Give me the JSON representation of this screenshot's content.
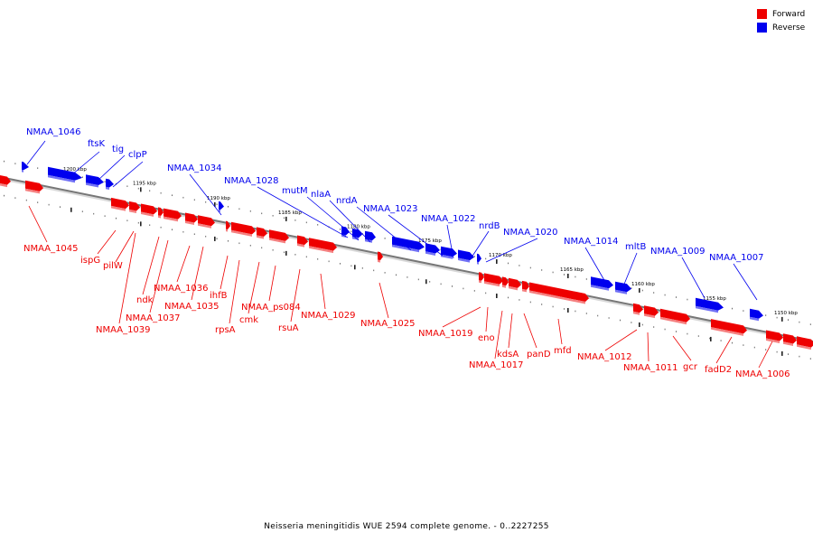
{
  "legend": {
    "forward": {
      "label": "Forward",
      "color": "#ee0000"
    },
    "reverse": {
      "label": "Reverse",
      "color": "#0000ee"
    }
  },
  "caption": "Neisseria meningitidis WUE 2594 complete genome. - 0..2227255",
  "axis": {
    "ticks": [
      "1200 kbp",
      "1195 kbp",
      "1190 kbp",
      "1185 kbp",
      "1180 kbp",
      "1175 kbp",
      "1170 kbp",
      "1165 kbp",
      "1160 kbp",
      "1155 kbp",
      "1150 kbp"
    ]
  },
  "genes": {
    "reverse": [
      "NMAA_1046",
      "ftsK",
      "tig",
      "clpP",
      "NMAA_1034",
      "NMAA_1028",
      "mutM",
      "nlaA",
      "nrdA",
      "NMAA_1023",
      "NMAA_1022",
      "nrdB",
      "NMAA_1020",
      "NMAA_1014",
      "mltB",
      "NMAA_1009",
      "NMAA_1007"
    ],
    "forward": [
      "NMAA_1045",
      "ispG",
      "pilW",
      "ndk",
      "NMAA_1039",
      "NMAA_1037",
      "NMAA_1036",
      "NMAA_1035",
      "ihfB",
      "rpsA",
      "cmk",
      "NMAA_ps084",
      "rsuA",
      "NMAA_1029",
      "NMAA_1025",
      "NMAA_1019",
      "eno",
      "NMAA_1017",
      "kdsA",
      "panD",
      "mfd",
      "NMAA_1012",
      "NMAA_1011",
      "gcr",
      "fadD2",
      "NMAA_1006"
    ]
  }
}
